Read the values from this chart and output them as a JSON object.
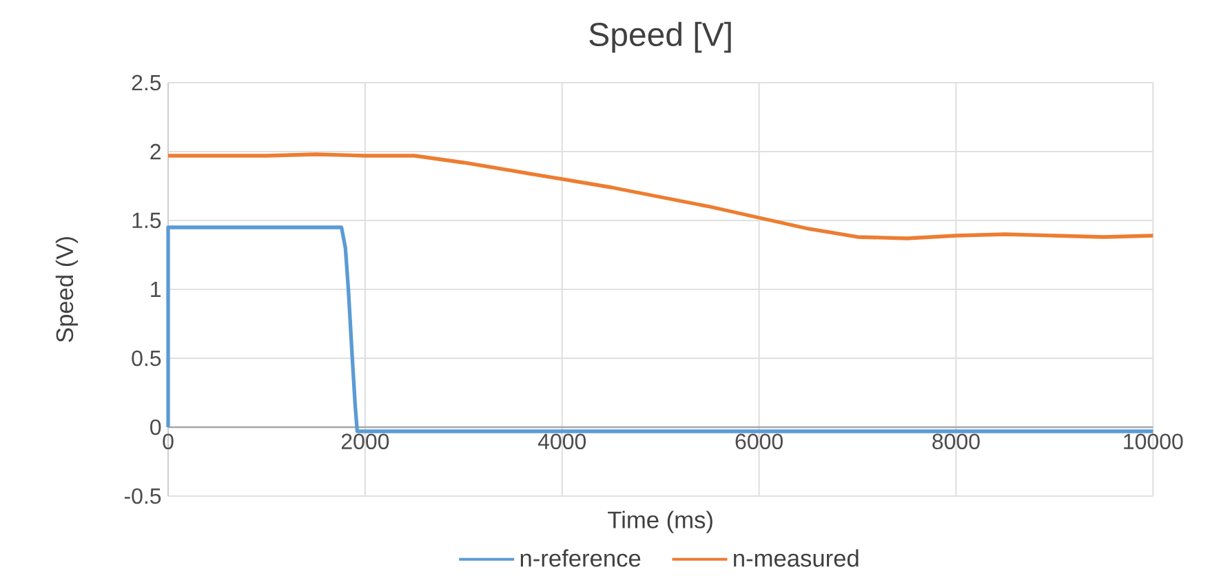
{
  "chart_data": {
    "type": "line",
    "title": "Speed [V]",
    "xlabel": "Time (ms)",
    "ylabel": "Speed (V)",
    "xlim": [
      0,
      10000
    ],
    "xticks": [
      0,
      2000,
      4000,
      6000,
      8000,
      10000
    ],
    "ylim": [
      -0.5,
      2.5
    ],
    "yticks": [
      -0.5,
      0,
      0.5,
      1,
      1.5,
      2,
      2.5
    ],
    "grid": true,
    "legend": "bottom",
    "line_style": "solid",
    "series": [
      {
        "name": "n-reference",
        "color": "#5b9bd5",
        "x": [
          0,
          0,
          1760,
          1800,
          1830,
          1870,
          1900,
          1920,
          10000
        ],
        "values": [
          0,
          1.45,
          1.45,
          1.3,
          1.0,
          0.5,
          0.15,
          -0.03,
          -0.03
        ]
      },
      {
        "name": "n-measured",
        "color": "#ed7d31",
        "x": [
          0,
          500,
          1000,
          1500,
          2000,
          2500,
          3000,
          3500,
          4000,
          4500,
          5000,
          5500,
          6000,
          6500,
          7000,
          7500,
          8000,
          8500,
          9000,
          9500,
          10000
        ],
        "values": [
          1.97,
          1.97,
          1.97,
          1.98,
          1.97,
          1.97,
          1.92,
          1.86,
          1.8,
          1.74,
          1.67,
          1.6,
          1.52,
          1.44,
          1.38,
          1.37,
          1.39,
          1.4,
          1.39,
          1.38,
          1.39
        ]
      }
    ]
  }
}
